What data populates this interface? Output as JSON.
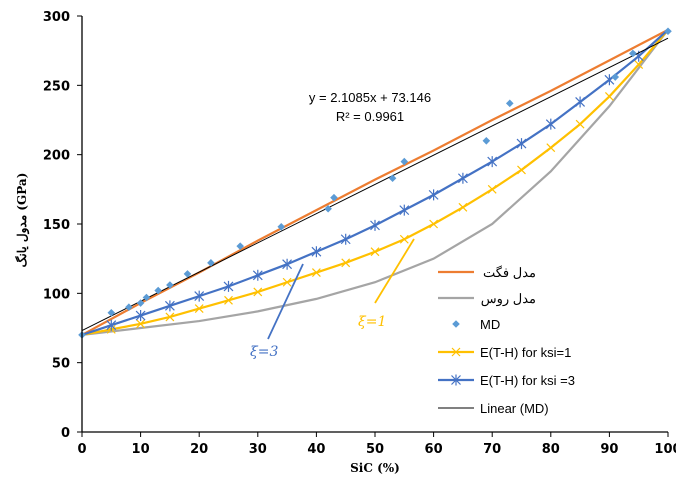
{
  "chart_data": {
    "type": "line",
    "xlabel": "SiC (%)",
    "ylabel": "مدول یانگ (GPa)",
    "xlim": [
      0,
      100
    ],
    "ylim": [
      0,
      300
    ],
    "x_ticks": [
      "0",
      "10",
      "20",
      "30",
      "40",
      "50",
      "60",
      "70",
      "80",
      "90",
      "100"
    ],
    "y_ticks": [
      "0",
      "50",
      "100",
      "150",
      "200",
      "250",
      "300"
    ],
    "grid": false,
    "legend_position": "bottom-right",
    "trendline_equation": "y = 2.1085x + 73.146",
    "trendline_r2": "R² = 0.9961",
    "series": [
      {
        "name": "مدل فگت",
        "type": "line",
        "color": "#ED7D31",
        "x": [
          0,
          10,
          20,
          30,
          40,
          50,
          60,
          70,
          80,
          90,
          100
        ],
        "y": [
          70,
          93,
          115,
          138,
          160,
          182,
          203,
          225,
          246,
          268,
          290
        ]
      },
      {
        "name": "مدل روس",
        "type": "line",
        "color": "#A5A5A5",
        "x": [
          0,
          10,
          20,
          30,
          40,
          50,
          60,
          70,
          80,
          90,
          100
        ],
        "y": [
          70,
          75,
          80,
          87,
          96,
          108,
          125,
          150,
          188,
          235,
          290
        ]
      },
      {
        "name": "MD",
        "type": "scatter",
        "color": "#5B9BD5",
        "x": [
          0,
          5,
          8,
          10,
          11,
          13,
          15,
          18,
          22,
          27,
          34,
          42,
          43,
          53,
          55,
          69,
          73,
          91,
          94,
          100
        ],
        "y": [
          70,
          86,
          90,
          93,
          97,
          102,
          106,
          114,
          122,
          134,
          148,
          161,
          169,
          183,
          195,
          210,
          237,
          256,
          273,
          289
        ]
      },
      {
        "name": "E(T-H) for ksi=1",
        "type": "line",
        "color": "#FFC000",
        "x": [
          0,
          5,
          10,
          15,
          20,
          25,
          30,
          35,
          40,
          45,
          50,
          55,
          60,
          65,
          70,
          75,
          80,
          85,
          90,
          95,
          100
        ],
        "y": [
          70,
          74,
          78,
          83,
          89,
          95,
          101,
          108,
          115,
          122,
          130,
          139,
          150,
          162,
          175,
          189,
          205,
          222,
          242,
          265,
          290
        ]
      },
      {
        "name": "E(T-H) for ksi =3",
        "type": "line",
        "color": "#4472C4",
        "x": [
          0,
          5,
          10,
          15,
          20,
          25,
          30,
          35,
          40,
          45,
          50,
          55,
          60,
          65,
          70,
          75,
          80,
          85,
          90,
          95,
          100
        ],
        "y": [
          70,
          77,
          84,
          91,
          98,
          105,
          113,
          121,
          130,
          139,
          149,
          160,
          171,
          183,
          195,
          208,
          222,
          238,
          254,
          271,
          290
        ]
      },
      {
        "name": "Linear (MD)",
        "type": "line",
        "color": "#000000",
        "x": [
          0,
          100
        ],
        "y": [
          73.146,
          283.996
        ]
      }
    ],
    "annotations": [
      {
        "text": "ξ=3",
        "color": "#4472C4"
      },
      {
        "text": "ξ=1",
        "color": "#FFC000"
      }
    ]
  }
}
